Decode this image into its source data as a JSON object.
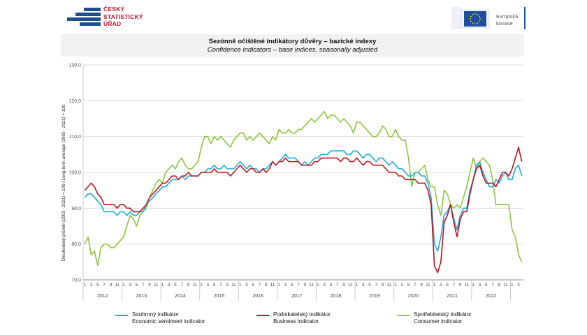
{
  "header": {
    "csu_logo_lines": [
      "ČESKÝ",
      "STATISTICKÝ",
      "ÚŘAD"
    ],
    "eu_logo_lines": [
      "Evropská",
      "komise"
    ]
  },
  "colors": {
    "sentiment": "#1eaadf",
    "business": "#c0141c",
    "consumer": "#8cc63f"
  },
  "chart_data": {
    "type": "line",
    "title": "Sezónně očištěné indikátory důvěry – bazické indexy",
    "subtitle": "Confidence indicators – base indices, seasonally adjusted",
    "ylabel": "Dlouhodobý průměr (2003 - 2021) = 100 | Long-term average (2003 - 2021) = 100",
    "ylim": [
      70,
      130
    ],
    "yticks": [
      "70,0",
      "80,0",
      "90,0",
      "100,0",
      "110,0",
      "120,0",
      "130,0"
    ],
    "x_month_labels": [
      "1",
      "3",
      "5",
      "7",
      "9",
      "11"
    ],
    "years": [
      "2012",
      "2013",
      "2014",
      "2015",
      "2016",
      "2017",
      "2018",
      "2019",
      "2020",
      "2021",
      "2022"
    ],
    "x_start": "2012-01",
    "grid": true,
    "legend_position": "bottom",
    "series": [
      {
        "name": "Souhrnný indikátor",
        "name_en": "Economic sentiment indicator",
        "values": [
          93,
          94,
          94,
          93,
          92,
          91,
          89,
          89,
          89,
          89,
          88,
          89,
          89,
          88,
          89,
          88,
          88,
          89,
          89,
          91,
          92,
          93,
          94,
          95,
          96,
          96,
          97,
          98,
          98,
          98,
          99,
          98,
          99,
          99,
          99,
          99,
          100,
          100,
          101,
          101,
          102,
          101,
          101,
          102,
          101,
          101,
          101,
          102,
          103,
          102,
          101,
          102,
          101,
          101,
          100,
          101,
          101,
          102,
          103,
          102,
          103,
          104,
          105,
          104,
          104,
          104,
          103,
          102,
          103,
          102,
          103,
          104,
          104,
          105,
          105,
          105,
          106,
          106,
          106,
          106,
          106,
          105,
          105,
          106,
          106,
          105,
          104,
          105,
          105,
          104,
          103,
          104,
          104,
          103,
          102,
          103,
          102,
          101,
          101,
          100,
          99,
          99,
          100,
          100,
          99,
          99,
          97,
          93,
          80,
          78,
          82,
          88,
          89,
          91,
          87,
          84,
          88,
          90,
          90,
          95,
          98,
          102,
          103,
          100,
          98,
          96,
          96,
          98,
          97,
          99,
          100,
          98,
          98,
          101,
          102,
          99
        ]
      },
      {
        "name": "Podnikatelský indikátor",
        "name_en": "Business indicator",
        "values": [
          95,
          96,
          97,
          96,
          94,
          93,
          91,
          91,
          91,
          91,
          90,
          91,
          91,
          90,
          90,
          89,
          89,
          89,
          90,
          91,
          93,
          94,
          95,
          96,
          97,
          97,
          98,
          99,
          99,
          98,
          99,
          99,
          100,
          99,
          99,
          99,
          100,
          100,
          100,
          100,
          101,
          100,
          100,
          100,
          100,
          99,
          100,
          101,
          102,
          101,
          100,
          101,
          101,
          100,
          100,
          101,
          100,
          101,
          103,
          102,
          103,
          103,
          104,
          103,
          103,
          103,
          103,
          102,
          102,
          102,
          102,
          103,
          103,
          104,
          104,
          104,
          104,
          104,
          104,
          103,
          104,
          104,
          103,
          103,
          104,
          103,
          102,
          103,
          103,
          102,
          102,
          102,
          102,
          101,
          100,
          100,
          100,
          99,
          99,
          98,
          98,
          98,
          98,
          97,
          97,
          97,
          95,
          91,
          74,
          72,
          75,
          86,
          88,
          91,
          86,
          82,
          87,
          89,
          89,
          94,
          98,
          101,
          102,
          99,
          97,
          97,
          97,
          96,
          98,
          100,
          100,
          99,
          101,
          104,
          107,
          103
        ]
      },
      {
        "name": "Spotřebitelský indikátor",
        "name_en": "Consumer indicator",
        "values": [
          80,
          82,
          77,
          78,
          74,
          79,
          80,
          80,
          79,
          79,
          80,
          81,
          82,
          85,
          88,
          87,
          85,
          88,
          89,
          90,
          93,
          95,
          97,
          98,
          97,
          100,
          101,
          102,
          101,
          103,
          104,
          102,
          101,
          101,
          102,
          103,
          107,
          110,
          110,
          108,
          110,
          109,
          110,
          109,
          108,
          107,
          109,
          110,
          111,
          111,
          109,
          110,
          109,
          110,
          111,
          110,
          109,
          108,
          110,
          109,
          112,
          111,
          111,
          112,
          111,
          111,
          112,
          112,
          113,
          114,
          115,
          114,
          115,
          116,
          117,
          115,
          116,
          116,
          115,
          114,
          115,
          114,
          113,
          111,
          114,
          114,
          113,
          112,
          111,
          110,
          110,
          111,
          113,
          112,
          110,
          110,
          112,
          110,
          109,
          109,
          104,
          96,
          100,
          100,
          101,
          102,
          98,
          96,
          96,
          91,
          88,
          95,
          94,
          91,
          90,
          91,
          90,
          93,
          96,
          100,
          104,
          101,
          103,
          104,
          103,
          102,
          98,
          91,
          91,
          91,
          91,
          91,
          84,
          82,
          77,
          75
        ]
      }
    ]
  }
}
